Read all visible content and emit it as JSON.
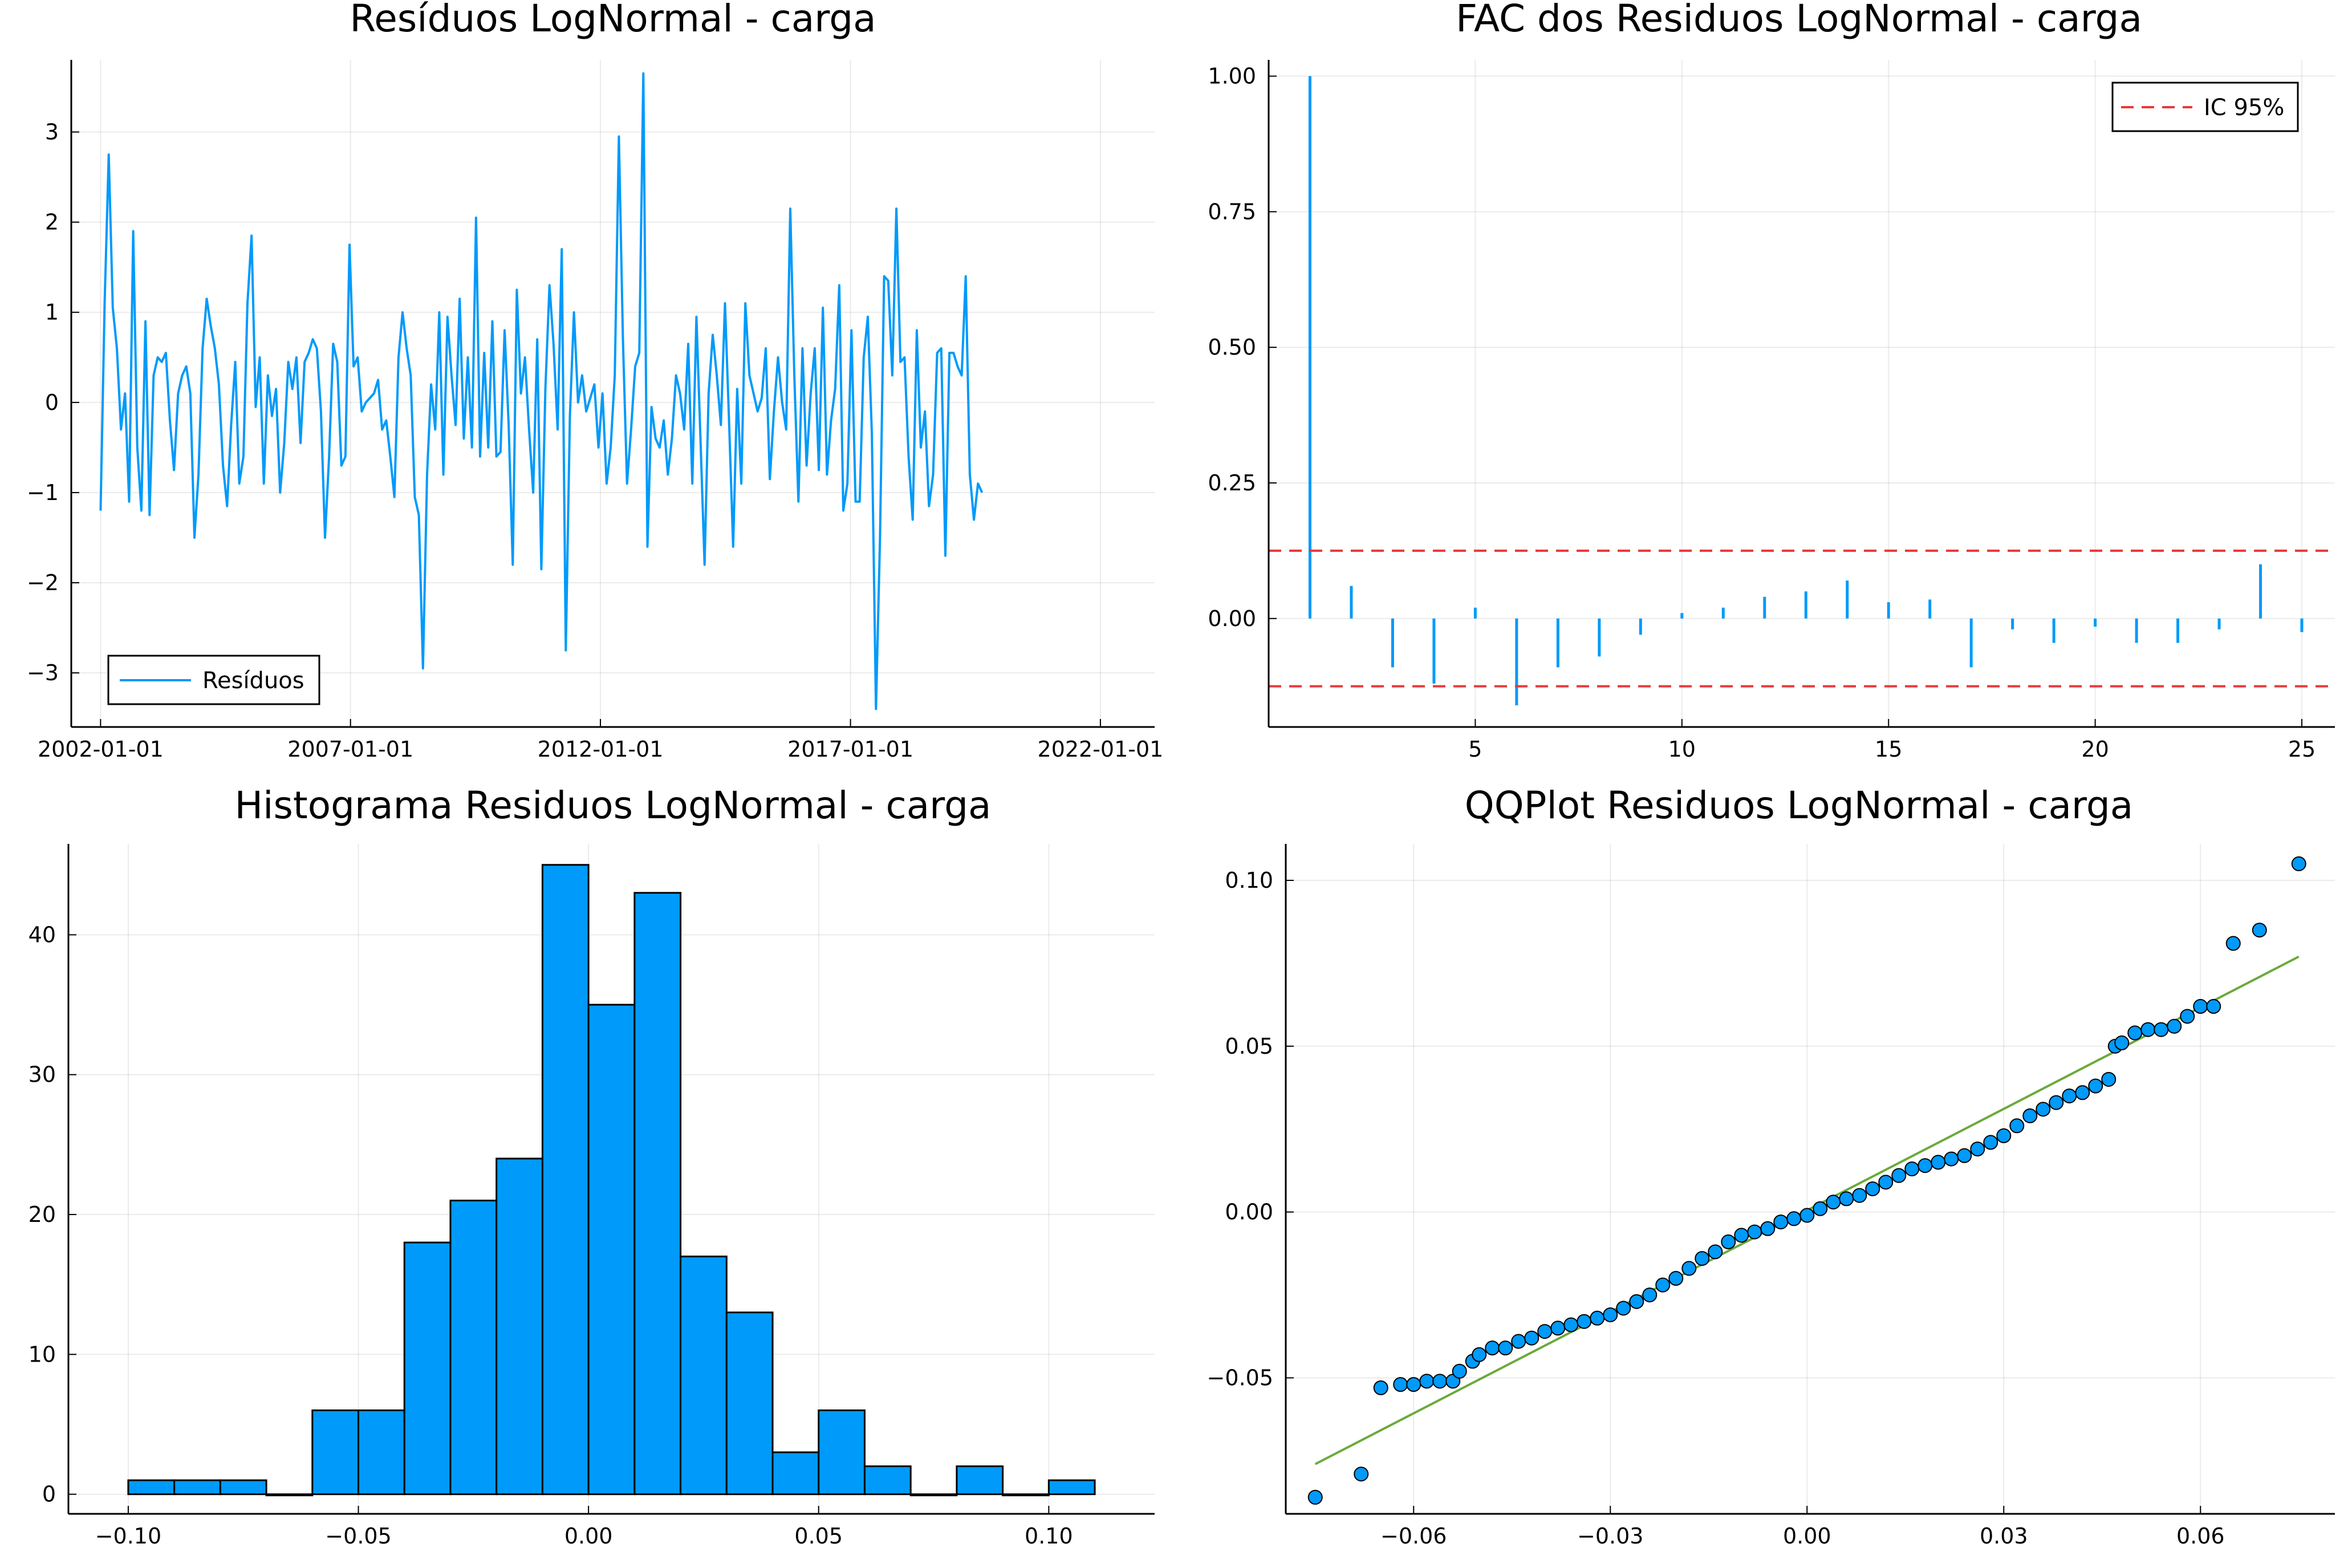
{
  "chart_data": [
    {
      "type": "line",
      "title": "Resíduos LogNormal - carga",
      "xlabel": "",
      "ylabel": "",
      "x_ticks": [
        "2002-01-01",
        "2007-01-01",
        "2012-01-01",
        "2017-01-01",
        "2022-01-01"
      ],
      "y_ticks": [
        "3",
        "2",
        "1",
        "0",
        "−1",
        "−2",
        "−3"
      ],
      "xlim": [
        "2001-06-01",
        "2023-02-01"
      ],
      "ylim": [
        -3.6,
        3.8
      ],
      "grid": true,
      "legend_position": "bottom-left",
      "series": [
        {
          "name": "Resíduos",
          "color": "#009AFA",
          "values": [
            -1.2,
            1.1,
            2.75,
            1.05,
            0.6,
            -0.3,
            0.1,
            -1.1,
            1.9,
            -0.5,
            -1.2,
            0.9,
            -1.25,
            0.3,
            0.5,
            0.45,
            0.55,
            -0.2,
            -0.75,
            0.1,
            0.3,
            0.4,
            0.1,
            -1.5,
            -0.8,
            0.6,
            1.15,
            0.85,
            0.6,
            0.2,
            -0.7,
            -1.15,
            -0.25,
            0.45,
            -0.9,
            -0.6,
            1.1,
            1.85,
            -0.05,
            0.5,
            -0.9,
            0.3,
            -0.15,
            0.15,
            -1.0,
            -0.45,
            0.45,
            0.15,
            0.5,
            -0.45,
            0.45,
            0.55,
            0.7,
            0.6,
            -0.1,
            -1.5,
            -0.6,
            0.65,
            0.45,
            -0.7,
            -0.6,
            1.75,
            0.4,
            0.5,
            -0.1,
            0.0,
            0.05,
            0.1,
            0.25,
            -0.3,
            -0.2,
            -0.6,
            -1.05,
            0.5,
            1.0,
            0.6,
            0.3,
            -1.05,
            -1.25,
            -2.95,
            -0.8,
            0.2,
            -0.3,
            1.0,
            -0.8,
            0.95,
            0.3,
            -0.25,
            1.15,
            -0.4,
            0.5,
            -0.5,
            2.05,
            -0.6,
            0.55,
            -0.5,
            0.9,
            -0.6,
            -0.55,
            0.8,
            -0.25,
            -1.8,
            1.25,
            0.1,
            0.5,
            -0.3,
            -1.0,
            0.7,
            -1.85,
            0.15,
            1.3,
            0.65,
            -0.3,
            1.7,
            -2.75,
            -0.15,
            1.0,
            0.0,
            0.3,
            -0.1,
            0.05,
            0.2,
            -0.5,
            0.1,
            -0.9,
            -0.5,
            0.3,
            2.95,
            0.7,
            -0.9,
            -0.3,
            0.4,
            0.55,
            3.65,
            -1.6,
            -0.05,
            -0.4,
            -0.5,
            -0.2,
            -0.8,
            -0.4,
            0.3,
            0.1,
            -0.3,
            0.65,
            -0.9,
            0.95,
            -0.4,
            -1.8,
            0.1,
            0.75,
            0.3,
            -0.25,
            1.1,
            -0.2,
            -1.6,
            0.15,
            -0.9,
            1.1,
            0.3,
            0.1,
            -0.1,
            0.05,
            0.6,
            -0.85,
            -0.1,
            0.5,
            0.0,
            -0.3,
            2.15,
            0.3,
            -1.1,
            0.6,
            -0.7,
            0.1,
            0.6,
            -0.75,
            1.05,
            -0.8,
            -0.2,
            0.15,
            1.3,
            -1.2,
            -0.9,
            0.8,
            -1.1,
            -1.1,
            0.5,
            0.95,
            -0.35,
            -3.4,
            -1.5,
            1.4,
            1.35,
            0.3,
            2.15,
            0.45,
            0.5,
            -0.6,
            -1.3,
            0.8,
            -0.5,
            -0.1,
            -1.15,
            -0.8,
            0.55,
            0.6,
            -1.7,
            0.55,
            0.55,
            0.4,
            0.3,
            1.4,
            -0.8,
            -1.3,
            -0.9,
            -1.0
          ]
        }
      ]
    },
    {
      "type": "bar",
      "title": "FAC dos Residuos LogNormal - carga",
      "xlabel": "",
      "ylabel": "",
      "x_ticks": [
        "5",
        "10",
        "15",
        "20",
        "25"
      ],
      "y_ticks": [
        "1.00",
        "0.75",
        "0.50",
        "0.25",
        "0.00"
      ],
      "xlim": [
        0.0,
        25.8
      ],
      "ylim": [
        -0.2,
        1.03
      ],
      "grid": true,
      "legend_position": "top-right",
      "lags": [
        1,
        2,
        3,
        4,
        5,
        6,
        7,
        8,
        9,
        10,
        11,
        12,
        13,
        14,
        15,
        16,
        17,
        18,
        19,
        20,
        21,
        22,
        23,
        24,
        25
      ],
      "values": [
        1.0,
        0.06,
        -0.09,
        -0.12,
        0.02,
        -0.16,
        -0.09,
        -0.07,
        -0.03,
        0.01,
        0.02,
        0.04,
        0.05,
        0.07,
        0.03,
        0.035,
        -0.09,
        -0.02,
        -0.045,
        -0.015,
        -0.045,
        -0.045,
        -0.02,
        0.1,
        -0.025
      ],
      "confidence_band": {
        "name": "IC 95%",
        "upper": 0.125,
        "lower": -0.125,
        "color": "#E8393A"
      },
      "bar_color": "#009AFA"
    },
    {
      "type": "bar",
      "title": "Histograma Residuos LogNormal - carga",
      "xlabel": "",
      "ylabel": "",
      "x_ticks": [
        "−0.10",
        "−0.05",
        "0.00",
        "0.05",
        "0.10"
      ],
      "y_ticks": [
        "40",
        "30",
        "20",
        "10",
        "0"
      ],
      "xlim": [
        -0.113,
        0.123
      ],
      "ylim": [
        -1.4,
        46.5
      ],
      "grid": true,
      "bin_edges": [
        -0.1,
        -0.09,
        -0.08,
        -0.07,
        -0.06,
        -0.05,
        -0.04,
        -0.03,
        -0.02,
        -0.01,
        0.0,
        0.01,
        0.02,
        0.03,
        0.04,
        0.05,
        0.06,
        0.07,
        0.08,
        0.09,
        0.1,
        0.11
      ],
      "counts": [
        1,
        1,
        1,
        0,
        6,
        6,
        18,
        21,
        24,
        45,
        35,
        43,
        17,
        13,
        3,
        6,
        2,
        0,
        2,
        0,
        1
      ],
      "bar_color": "#009AFA"
    },
    {
      "type": "scatter",
      "title": "QQPlot Residuos LogNormal - carga",
      "xlabel": "",
      "ylabel": "",
      "x_ticks": [
        "−0.06",
        "−0.03",
        "0.00",
        "0.03",
        "0.06"
      ],
      "y_ticks": [
        "0.10",
        "0.05",
        "0.00",
        "−0.05"
      ],
      "xlim": [
        -0.0795,
        0.0805
      ],
      "ylim": [
        -0.091,
        0.111
      ],
      "grid": true,
      "points": [
        [
          -0.075,
          -0.086
        ],
        [
          -0.068,
          -0.079
        ],
        [
          -0.065,
          -0.053
        ],
        [
          -0.062,
          -0.052
        ],
        [
          -0.06,
          -0.052
        ],
        [
          -0.058,
          -0.051
        ],
        [
          -0.056,
          -0.051
        ],
        [
          -0.054,
          -0.051
        ],
        [
          -0.053,
          -0.048
        ],
        [
          -0.051,
          -0.045
        ],
        [
          -0.05,
          -0.043
        ],
        [
          -0.048,
          -0.041
        ],
        [
          -0.046,
          -0.041
        ],
        [
          -0.044,
          -0.039
        ],
        [
          -0.042,
          -0.038
        ],
        [
          -0.04,
          -0.036
        ],
        [
          -0.038,
          -0.035
        ],
        [
          -0.036,
          -0.034
        ],
        [
          -0.034,
          -0.033
        ],
        [
          -0.032,
          -0.032
        ],
        [
          -0.03,
          -0.031
        ],
        [
          -0.028,
          -0.029
        ],
        [
          -0.026,
          -0.027
        ],
        [
          -0.024,
          -0.025
        ],
        [
          -0.022,
          -0.022
        ],
        [
          -0.02,
          -0.02
        ],
        [
          -0.018,
          -0.017
        ],
        [
          -0.016,
          -0.014
        ],
        [
          -0.014,
          -0.012
        ],
        [
          -0.012,
          -0.009
        ],
        [
          -0.01,
          -0.007
        ],
        [
          -0.008,
          -0.006
        ],
        [
          -0.006,
          -0.005
        ],
        [
          -0.004,
          -0.003
        ],
        [
          -0.002,
          -0.002
        ],
        [
          0.0,
          -0.001
        ],
        [
          0.002,
          0.001
        ],
        [
          0.004,
          0.003
        ],
        [
          0.006,
          0.004
        ],
        [
          0.008,
          0.005
        ],
        [
          0.01,
          0.007
        ],
        [
          0.012,
          0.009
        ],
        [
          0.014,
          0.011
        ],
        [
          0.016,
          0.013
        ],
        [
          0.018,
          0.014
        ],
        [
          0.02,
          0.015
        ],
        [
          0.022,
          0.016
        ],
        [
          0.024,
          0.017
        ],
        [
          0.026,
          0.019
        ],
        [
          0.028,
          0.021
        ],
        [
          0.03,
          0.023
        ],
        [
          0.032,
          0.026
        ],
        [
          0.034,
          0.029
        ],
        [
          0.036,
          0.031
        ],
        [
          0.038,
          0.033
        ],
        [
          0.04,
          0.035
        ],
        [
          0.042,
          0.036
        ],
        [
          0.044,
          0.038
        ],
        [
          0.046,
          0.04
        ],
        [
          0.047,
          0.05
        ],
        [
          0.048,
          0.051
        ],
        [
          0.05,
          0.054
        ],
        [
          0.052,
          0.055
        ],
        [
          0.054,
          0.055
        ],
        [
          0.056,
          0.056
        ],
        [
          0.058,
          0.059
        ],
        [
          0.06,
          0.062
        ],
        [
          0.062,
          0.062
        ],
        [
          0.065,
          0.081
        ],
        [
          0.069,
          0.085
        ],
        [
          0.075,
          0.105
        ]
      ],
      "reference_line": {
        "x": [
          -0.075,
          0.075
        ],
        "y": [
          -0.076,
          0.077
        ],
        "color": "#6AAA3A"
      },
      "marker_color": "#009AFA"
    }
  ]
}
